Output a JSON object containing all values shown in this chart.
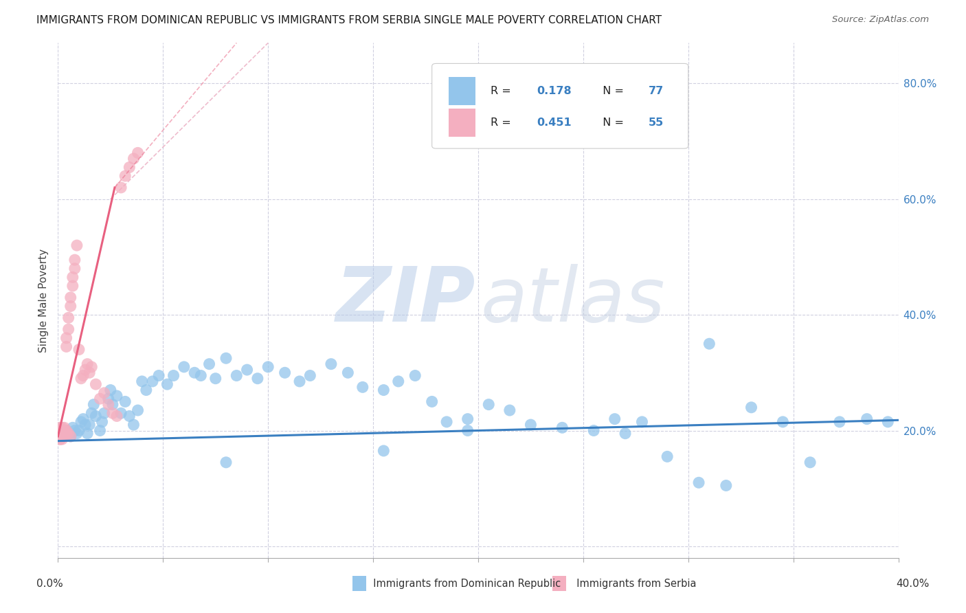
{
  "title": "IMMIGRANTS FROM DOMINICAN REPUBLIC VS IMMIGRANTS FROM SERBIA SINGLE MALE POVERTY CORRELATION CHART",
  "source": "Source: ZipAtlas.com",
  "ylabel": "Single Male Poverty",
  "y_ticks": [
    0.0,
    0.2,
    0.4,
    0.6,
    0.8
  ],
  "y_tick_labels": [
    "",
    "20.0%",
    "40.0%",
    "60.0%",
    "80.0%"
  ],
  "x_range": [
    0.0,
    0.4
  ],
  "y_range": [
    -0.02,
    0.87
  ],
  "color_blue": "#93c5eb",
  "color_pink": "#f4afc0",
  "color_blue_line": "#3a7fc1",
  "color_pink_line": "#e86080",
  "color_diag_line": "#d8c8cc",
  "watermark_zip_color": "#c8d8f0",
  "watermark_atlas_color": "#c8d8f0",
  "blue_trend": [
    0.0,
    0.4,
    0.182,
    0.218
  ],
  "pink_trend_solid": [
    0.0,
    0.027,
    0.19,
    0.62
  ],
  "pink_trend_dashed": [
    0.027,
    0.085,
    0.62,
    0.87
  ],
  "blue_x": [
    0.003,
    0.004,
    0.005,
    0.006,
    0.007,
    0.008,
    0.009,
    0.01,
    0.011,
    0.012,
    0.013,
    0.014,
    0.015,
    0.016,
    0.017,
    0.018,
    0.02,
    0.021,
    0.022,
    0.024,
    0.025,
    0.026,
    0.028,
    0.03,
    0.032,
    0.034,
    0.036,
    0.038,
    0.04,
    0.042,
    0.045,
    0.048,
    0.052,
    0.055,
    0.06,
    0.065,
    0.068,
    0.072,
    0.075,
    0.08,
    0.085,
    0.09,
    0.095,
    0.1,
    0.108,
    0.115,
    0.12,
    0.13,
    0.138,
    0.145,
    0.155,
    0.162,
    0.17,
    0.178,
    0.185,
    0.195,
    0.205,
    0.215,
    0.225,
    0.24,
    0.255,
    0.265,
    0.278,
    0.29,
    0.305,
    0.318,
    0.33,
    0.345,
    0.358,
    0.372,
    0.385,
    0.395,
    0.31,
    0.27,
    0.195,
    0.155,
    0.08
  ],
  "blue_y": [
    0.195,
    0.2,
    0.195,
    0.19,
    0.205,
    0.2,
    0.195,
    0.2,
    0.215,
    0.22,
    0.21,
    0.195,
    0.21,
    0.23,
    0.245,
    0.225,
    0.2,
    0.215,
    0.23,
    0.255,
    0.27,
    0.245,
    0.26,
    0.23,
    0.25,
    0.225,
    0.21,
    0.235,
    0.285,
    0.27,
    0.285,
    0.295,
    0.28,
    0.295,
    0.31,
    0.3,
    0.295,
    0.315,
    0.29,
    0.325,
    0.295,
    0.305,
    0.29,
    0.31,
    0.3,
    0.285,
    0.295,
    0.315,
    0.3,
    0.275,
    0.27,
    0.285,
    0.295,
    0.25,
    0.215,
    0.22,
    0.245,
    0.235,
    0.21,
    0.205,
    0.2,
    0.22,
    0.215,
    0.155,
    0.11,
    0.105,
    0.24,
    0.215,
    0.145,
    0.215,
    0.22,
    0.215,
    0.35,
    0.195,
    0.2,
    0.165,
    0.145
  ],
  "pink_x": [
    0.001,
    0.001,
    0.001,
    0.001,
    0.001,
    0.001,
    0.001,
    0.001,
    0.001,
    0.001,
    0.002,
    0.002,
    0.002,
    0.002,
    0.002,
    0.002,
    0.002,
    0.002,
    0.003,
    0.003,
    0.003,
    0.003,
    0.004,
    0.004,
    0.004,
    0.004,
    0.005,
    0.005,
    0.005,
    0.006,
    0.006,
    0.006,
    0.007,
    0.007,
    0.008,
    0.008,
    0.009,
    0.01,
    0.011,
    0.012,
    0.013,
    0.014,
    0.015,
    0.016,
    0.018,
    0.02,
    0.022,
    0.024,
    0.026,
    0.028,
    0.03,
    0.032,
    0.034,
    0.036,
    0.038
  ],
  "pink_y": [
    0.19,
    0.195,
    0.2,
    0.185,
    0.205,
    0.195,
    0.19,
    0.185,
    0.2,
    0.195,
    0.195,
    0.195,
    0.2,
    0.195,
    0.185,
    0.2,
    0.205,
    0.195,
    0.19,
    0.195,
    0.205,
    0.2,
    0.345,
    0.36,
    0.195,
    0.2,
    0.375,
    0.395,
    0.195,
    0.415,
    0.43,
    0.19,
    0.45,
    0.465,
    0.48,
    0.495,
    0.52,
    0.34,
    0.29,
    0.295,
    0.305,
    0.315,
    0.3,
    0.31,
    0.28,
    0.255,
    0.265,
    0.245,
    0.23,
    0.225,
    0.62,
    0.64,
    0.655,
    0.67,
    0.68
  ]
}
